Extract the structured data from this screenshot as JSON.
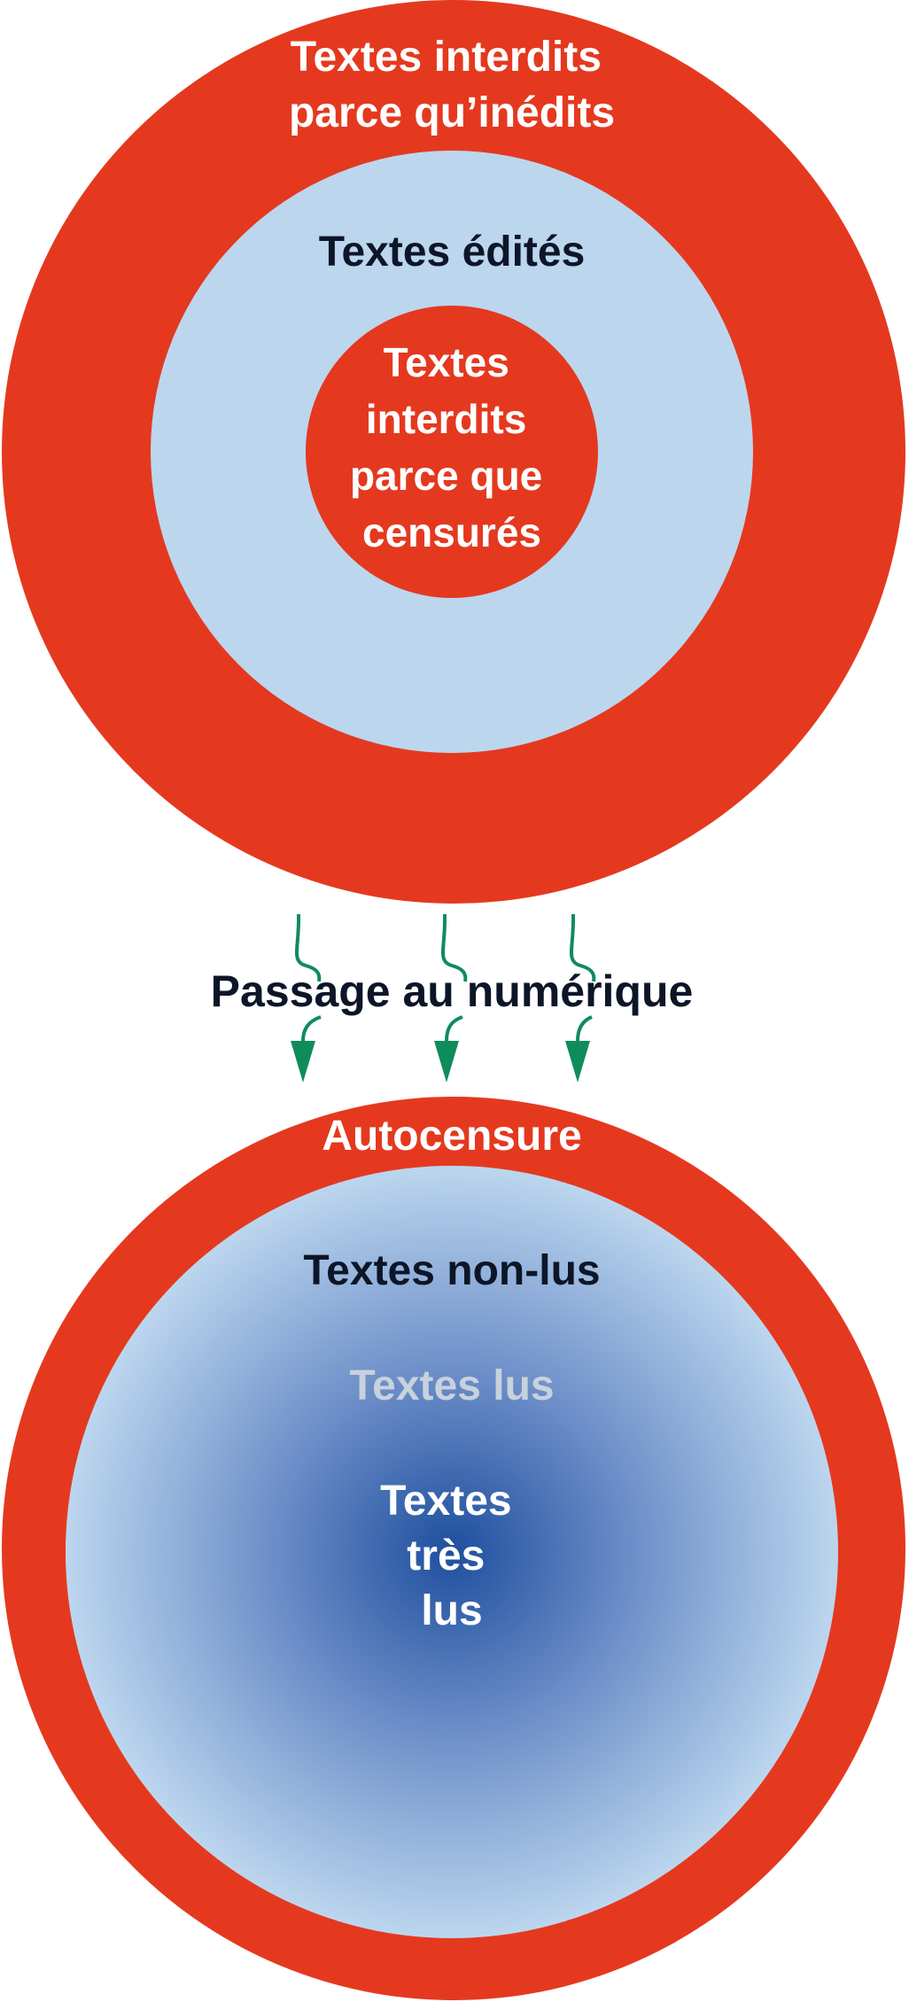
{
  "colors": {
    "red": "#e4391f",
    "light_blue": "#bcd6ee",
    "dark_navy": "#0d1628",
    "deep_blue": "#1e4f9e",
    "grey_text": "#c8d2dc",
    "white": "#ffffff",
    "green_arrow": "#0f8c5c"
  },
  "top_diagram": {
    "outer_ring": {
      "lines": [
        "Textes interdits",
        "parce qu’inédits"
      ]
    },
    "middle_ring": {
      "label": "Textes édités"
    },
    "inner_circle": {
      "lines": [
        "Textes",
        "interdits",
        "parce que",
        "censurés"
      ]
    }
  },
  "transition": {
    "label": "Passage au numérique",
    "arrow_count": 3
  },
  "bottom_diagram": {
    "outer_ring": {
      "label": "Autocensure"
    },
    "zone_outer": {
      "label": "Textes non-lus"
    },
    "zone_middle": {
      "label": "Textes lus"
    },
    "zone_center": {
      "lines": [
        "Textes",
        "très",
        "lus"
      ]
    }
  }
}
